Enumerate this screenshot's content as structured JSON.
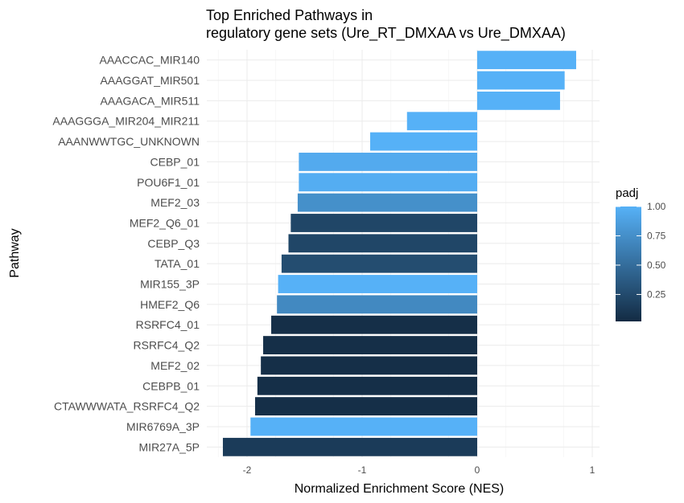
{
  "chart_data": {
    "type": "bar",
    "orientation": "horizontal",
    "title": "Top Enriched Pathways in\nregulatory gene sets (Ure_RT_DMXAA vs Ure_DMXAA)",
    "xlabel": "Normalized Enrichment Score (NES)",
    "ylabel": "Pathway",
    "xlim": [
      -2.25,
      1.0
    ],
    "xticks": [
      -2,
      -1,
      0,
      1
    ],
    "grid": true,
    "legend": {
      "title": "padj",
      "placement": "right",
      "type": "colorbar",
      "range": [
        0.0,
        1.0
      ],
      "ticks": [
        1.0,
        0.75,
        0.5,
        0.25
      ],
      "tick_labels": [
        "1.00",
        "0.75",
        "0.50",
        "0.25"
      ],
      "color_low": "#132B43",
      "color_high": "#56B1F7"
    },
    "categories": [
      "AAACCAC_MIR140",
      "AAAGGAT_MIR501",
      "AAAGACA_MIR511",
      "AAAGGGA_MIR204_MIR211",
      "AAANWWTGC_UNKNOWN",
      "CEBP_01",
      "POU6F1_01",
      "MEF2_03",
      "MEF2_Q6_01",
      "CEBP_Q3",
      "TATA_01",
      "MIR155_3P",
      "HMEF2_Q6",
      "RSRFC4_01",
      "RSRFC4_Q2",
      "MEF2_02",
      "CEBPB_01",
      "CTAWWWATA_RSRFC4_Q2",
      "MIR6769A_3P",
      "MIR27A_5P"
    ],
    "values": [
      0.86,
      0.76,
      0.72,
      -0.61,
      -0.93,
      -1.55,
      -1.55,
      -1.56,
      -1.62,
      -1.64,
      -1.7,
      -1.73,
      -1.74,
      -1.79,
      -1.86,
      -1.88,
      -1.91,
      -1.93,
      -1.97,
      -2.21
    ],
    "padj": [
      1.0,
      1.0,
      1.0,
      1.0,
      1.0,
      0.95,
      0.97,
      0.75,
      0.2,
      0.2,
      0.25,
      1.0,
      0.7,
      0.03,
      0.03,
      0.03,
      0.03,
      0.03,
      1.0,
      0.12
    ]
  }
}
